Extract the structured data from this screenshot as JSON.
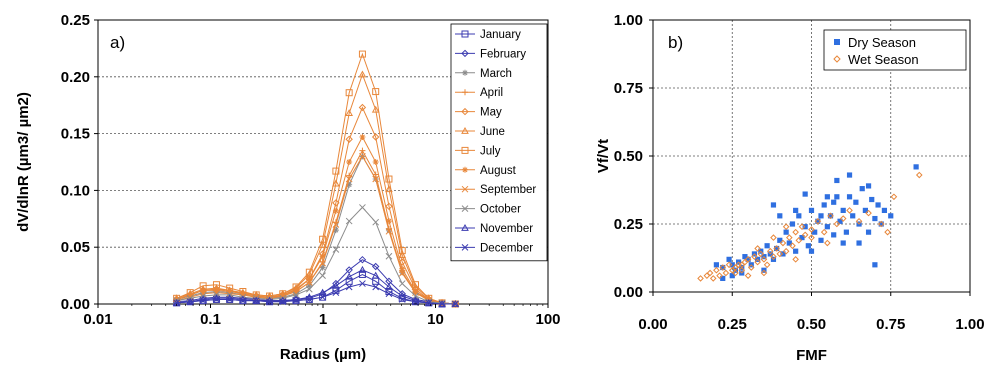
{
  "chart_data": [
    {
      "type": "line",
      "panel_label": "a)",
      "xlabel": "Radius (µm)",
      "ylabel": "dV/dlnR (µm3/ µm2)",
      "x_scale": "log",
      "xlim": [
        0.01,
        100
      ],
      "ylim": [
        0,
        0.25
      ],
      "x_ticks": [
        0.01,
        0.1,
        1,
        10,
        100
      ],
      "x_tick_labels": [
        "0.01",
        "0.1",
        "1",
        "10",
        "100"
      ],
      "y_ticks": [
        0,
        0.05,
        0.1,
        0.15,
        0.2,
        0.25
      ],
      "y_tick_labels": [
        "0.00",
        "0.05",
        "0.10",
        "0.15",
        "0.20",
        "0.25"
      ],
      "grid": "horizontal dotted",
      "legend_position": "top-right",
      "x": [
        0.05,
        0.066,
        0.086,
        0.113,
        0.148,
        0.194,
        0.255,
        0.335,
        0.439,
        0.576,
        0.756,
        0.992,
        1.302,
        1.708,
        2.241,
        2.94,
        3.857,
        5.061,
        6.641,
        8.713,
        11.432,
        15.0
      ],
      "series": [
        {
          "name": "January",
          "color": "#3b3bb0",
          "marker": "square",
          "values": [
            0.001,
            0.002,
            0.003,
            0.004,
            0.004,
            0.003,
            0.003,
            0.002,
            0.003,
            0.003,
            0.004,
            0.006,
            0.012,
            0.02,
            0.026,
            0.02,
            0.011,
            0.005,
            0.002,
            0.001,
            0.0,
            0.0
          ]
        },
        {
          "name": "February",
          "color": "#3b3bb0",
          "marker": "diamond",
          "values": [
            0.002,
            0.003,
            0.005,
            0.006,
            0.006,
            0.005,
            0.004,
            0.003,
            0.003,
            0.004,
            0.005,
            0.009,
            0.018,
            0.03,
            0.039,
            0.033,
            0.02,
            0.009,
            0.004,
            0.002,
            0.001,
            0.0
          ]
        },
        {
          "name": "March",
          "color": "#8c8c8c",
          "marker": "star",
          "values": [
            0.004,
            0.007,
            0.01,
            0.011,
            0.01,
            0.008,
            0.006,
            0.005,
            0.006,
            0.009,
            0.016,
            0.032,
            0.065,
            0.105,
            0.13,
            0.11,
            0.065,
            0.028,
            0.01,
            0.004,
            0.001,
            0.0
          ]
        },
        {
          "name": "April",
          "color": "#e8873a",
          "marker": "plus",
          "values": [
            0.004,
            0.008,
            0.012,
            0.013,
            0.012,
            0.009,
            0.007,
            0.006,
            0.007,
            0.011,
            0.019,
            0.037,
            0.072,
            0.113,
            0.135,
            0.114,
            0.066,
            0.028,
            0.01,
            0.004,
            0.001,
            0.0
          ]
        },
        {
          "name": "May",
          "color": "#e8873a",
          "marker": "diamond",
          "values": [
            0.004,
            0.008,
            0.012,
            0.012,
            0.011,
            0.009,
            0.007,
            0.006,
            0.008,
            0.012,
            0.022,
            0.044,
            0.089,
            0.145,
            0.173,
            0.147,
            0.086,
            0.037,
            0.013,
            0.004,
            0.001,
            0.0
          ]
        },
        {
          "name": "June",
          "color": "#e8873a",
          "marker": "triangle",
          "values": [
            0.005,
            0.009,
            0.013,
            0.014,
            0.012,
            0.01,
            0.008,
            0.007,
            0.009,
            0.014,
            0.026,
            0.052,
            0.106,
            0.168,
            0.202,
            0.171,
            0.101,
            0.043,
            0.015,
            0.005,
            0.001,
            0.0
          ]
        },
        {
          "name": "July",
          "color": "#e8873a",
          "marker": "square",
          "values": [
            0.005,
            0.01,
            0.016,
            0.017,
            0.014,
            0.011,
            0.008,
            0.007,
            0.009,
            0.015,
            0.028,
            0.057,
            0.117,
            0.186,
            0.22,
            0.187,
            0.11,
            0.047,
            0.017,
            0.005,
            0.001,
            0.0
          ]
        },
        {
          "name": "August",
          "color": "#e8873a",
          "marker": "asterisk",
          "values": [
            0.004,
            0.008,
            0.012,
            0.013,
            0.012,
            0.009,
            0.007,
            0.006,
            0.008,
            0.013,
            0.022,
            0.042,
            0.082,
            0.125,
            0.147,
            0.125,
            0.073,
            0.031,
            0.011,
            0.004,
            0.001,
            0.0
          ]
        },
        {
          "name": "September",
          "color": "#e8873a",
          "marker": "x",
          "values": [
            0.003,
            0.006,
            0.009,
            0.01,
            0.009,
            0.008,
            0.006,
            0.005,
            0.007,
            0.011,
            0.019,
            0.036,
            0.07,
            0.11,
            0.13,
            0.11,
            0.064,
            0.027,
            0.01,
            0.003,
            0.001,
            0.0
          ]
        },
        {
          "name": "October",
          "color": "#8c8c8c",
          "marker": "x",
          "values": [
            0.003,
            0.005,
            0.007,
            0.008,
            0.008,
            0.006,
            0.005,
            0.004,
            0.005,
            0.008,
            0.013,
            0.025,
            0.048,
            0.073,
            0.085,
            0.072,
            0.042,
            0.018,
            0.007,
            0.002,
            0.001,
            0.0
          ]
        },
        {
          "name": "November",
          "color": "#3b3bb0",
          "marker": "triangle",
          "values": [
            0.001,
            0.002,
            0.004,
            0.005,
            0.005,
            0.004,
            0.003,
            0.003,
            0.003,
            0.004,
            0.006,
            0.01,
            0.016,
            0.024,
            0.03,
            0.025,
            0.015,
            0.007,
            0.003,
            0.001,
            0.0,
            0.0
          ]
        },
        {
          "name": "December",
          "color": "#3b3bb0",
          "marker": "x",
          "values": [
            0.001,
            0.002,
            0.003,
            0.004,
            0.004,
            0.003,
            0.003,
            0.002,
            0.002,
            0.003,
            0.004,
            0.006,
            0.01,
            0.015,
            0.018,
            0.015,
            0.009,
            0.004,
            0.002,
            0.001,
            0.0,
            0.0
          ]
        }
      ]
    },
    {
      "type": "scatter",
      "panel_label": "b)",
      "xlabel": "FMF",
      "ylabel": "Vf/Vt",
      "xlim": [
        0,
        1
      ],
      "ylim": [
        0,
        1
      ],
      "x_ticks": [
        0,
        0.25,
        0.5,
        0.75,
        1.0
      ],
      "x_tick_labels": [
        "0.00",
        "0.25",
        "0.50",
        "0.75",
        "1.00"
      ],
      "y_ticks": [
        0,
        0.25,
        0.5,
        0.75,
        1.0
      ],
      "y_tick_labels": [
        "0.00",
        "0.25",
        "0.50",
        "0.75",
        "1.00"
      ],
      "grid": "dotted both",
      "legend_position": "top-right",
      "series": [
        {
          "name": "Dry Season",
          "color": "#2f6fe0",
          "marker": "filled-square",
          "points": [
            [
              0.2,
              0.1
            ],
            [
              0.22,
              0.09
            ],
            [
              0.24,
              0.12
            ],
            [
              0.25,
              0.1
            ],
            [
              0.26,
              0.08
            ],
            [
              0.27,
              0.11
            ],
            [
              0.28,
              0.09
            ],
            [
              0.29,
              0.13
            ],
            [
              0.3,
              0.12
            ],
            [
              0.31,
              0.1
            ],
            [
              0.32,
              0.14
            ],
            [
              0.33,
              0.12
            ],
            [
              0.34,
              0.15
            ],
            [
              0.35,
              0.13
            ],
            [
              0.36,
              0.17
            ],
            [
              0.37,
              0.14
            ],
            [
              0.38,
              0.12
            ],
            [
              0.39,
              0.16
            ],
            [
              0.4,
              0.19
            ],
            [
              0.41,
              0.14
            ],
            [
              0.42,
              0.22
            ],
            [
              0.43,
              0.18
            ],
            [
              0.44,
              0.25
            ],
            [
              0.45,
              0.15
            ],
            [
              0.46,
              0.28
            ],
            [
              0.47,
              0.2
            ],
            [
              0.48,
              0.24
            ],
            [
              0.49,
              0.17
            ],
            [
              0.5,
              0.3
            ],
            [
              0.51,
              0.22
            ],
            [
              0.52,
              0.26
            ],
            [
              0.53,
              0.19
            ],
            [
              0.54,
              0.32
            ],
            [
              0.55,
              0.24
            ],
            [
              0.56,
              0.28
            ],
            [
              0.57,
              0.21
            ],
            [
              0.58,
              0.35
            ],
            [
              0.59,
              0.26
            ],
            [
              0.6,
              0.3
            ],
            [
              0.61,
              0.22
            ],
            [
              0.62,
              0.43
            ],
            [
              0.63,
              0.28
            ],
            [
              0.64,
              0.33
            ],
            [
              0.65,
              0.25
            ],
            [
              0.66,
              0.38
            ],
            [
              0.67,
              0.3
            ],
            [
              0.68,
              0.22
            ],
            [
              0.69,
              0.34
            ],
            [
              0.7,
              0.27
            ],
            [
              0.71,
              0.32
            ],
            [
              0.72,
              0.25
            ],
            [
              0.73,
              0.3
            ],
            [
              0.75,
              0.28
            ],
            [
              0.7,
              0.1
            ],
            [
              0.6,
              0.18
            ],
            [
              0.45,
              0.3
            ],
            [
              0.38,
              0.32
            ],
            [
              0.4,
              0.28
            ],
            [
              0.55,
              0.35
            ],
            [
              0.5,
              0.15
            ],
            [
              0.35,
              0.08
            ],
            [
              0.28,
              0.07
            ],
            [
              0.25,
              0.06
            ],
            [
              0.22,
              0.05
            ],
            [
              0.83,
              0.46
            ],
            [
              0.58,
              0.41
            ],
            [
              0.65,
              0.18
            ],
            [
              0.48,
              0.36
            ],
            [
              0.62,
              0.35
            ],
            [
              0.53,
              0.28
            ],
            [
              0.68,
              0.39
            ],
            [
              0.57,
              0.33
            ]
          ]
        },
        {
          "name": "Wet Season",
          "color": "#e8873a",
          "marker": "open-diamond",
          "points": [
            [
              0.15,
              0.05
            ],
            [
              0.17,
              0.06
            ],
            [
              0.18,
              0.07
            ],
            [
              0.19,
              0.05
            ],
            [
              0.2,
              0.08
            ],
            [
              0.21,
              0.06
            ],
            [
              0.22,
              0.09
            ],
            [
              0.23,
              0.07
            ],
            [
              0.24,
              0.1
            ],
            [
              0.25,
              0.08
            ],
            [
              0.26,
              0.09
            ],
            [
              0.27,
              0.1
            ],
            [
              0.28,
              0.08
            ],
            [
              0.29,
              0.11
            ],
            [
              0.3,
              0.12
            ],
            [
              0.31,
              0.09
            ],
            [
              0.32,
              0.13
            ],
            [
              0.33,
              0.11
            ],
            [
              0.34,
              0.14
            ],
            [
              0.35,
              0.12
            ],
            [
              0.36,
              0.1
            ],
            [
              0.37,
              0.15
            ],
            [
              0.38,
              0.13
            ],
            [
              0.39,
              0.16
            ],
            [
              0.4,
              0.14
            ],
            [
              0.41,
              0.18
            ],
            [
              0.42,
              0.15
            ],
            [
              0.43,
              0.2
            ],
            [
              0.44,
              0.17
            ],
            [
              0.45,
              0.22
            ],
            [
              0.46,
              0.19
            ],
            [
              0.47,
              0.24
            ],
            [
              0.48,
              0.21
            ],
            [
              0.5,
              0.23
            ],
            [
              0.52,
              0.26
            ],
            [
              0.54,
              0.22
            ],
            [
              0.56,
              0.28
            ],
            [
              0.58,
              0.25
            ],
            [
              0.6,
              0.27
            ],
            [
              0.62,
              0.3
            ],
            [
              0.65,
              0.26
            ],
            [
              0.68,
              0.29
            ],
            [
              0.72,
              0.25
            ],
            [
              0.74,
              0.22
            ],
            [
              0.76,
              0.35
            ],
            [
              0.84,
              0.43
            ],
            [
              0.55,
              0.18
            ],
            [
              0.45,
              0.12
            ],
            [
              0.35,
              0.07
            ],
            [
              0.3,
              0.06
            ],
            [
              0.26,
              0.07
            ],
            [
              0.28,
              0.1
            ],
            [
              0.33,
              0.16
            ],
            [
              0.38,
              0.2
            ],
            [
              0.42,
              0.24
            ],
            [
              0.5,
              0.2
            ]
          ]
        }
      ]
    }
  ]
}
